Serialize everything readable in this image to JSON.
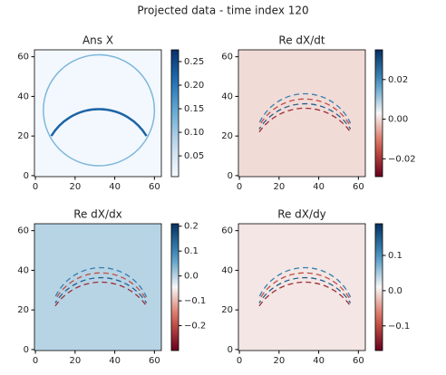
{
  "title": "Projected data - time index 120",
  "chart_data": [
    {
      "type": "heatmap",
      "title": "Ans X",
      "cmap": "Blues",
      "xlim": [
        -0.5,
        63.5
      ],
      "ylim": [
        63.5,
        -0.5
      ],
      "xticks": [
        0,
        20,
        40,
        60
      ],
      "yticks": [
        0,
        20,
        40,
        60
      ],
      "clim": [
        0.006,
        0.275
      ],
      "cticks": [
        0.05,
        {
          "value": 0.1,
          "label": "0.10"
        },
        0.15,
        {
          "value": 0.2,
          "label": "0.20"
        },
        0.25
      ]
    },
    {
      "type": "heatmap",
      "title": "Re dX/dt",
      "cmap": "RdBu",
      "xlim": [
        -0.5,
        63.5
      ],
      "ylim": [
        63.5,
        -0.5
      ],
      "xticks": [
        0,
        20,
        40,
        60
      ],
      "yticks": [
        0,
        20,
        40,
        60
      ],
      "clim": [
        -0.029,
        0.035
      ],
      "cticks": [
        {
          "value": -0.02,
          "label": "−0.02"
        },
        {
          "value": 0,
          "label": "0.00"
        },
        0.02
      ]
    },
    {
      "type": "heatmap",
      "title": "Re dX/dx",
      "cmap": "RdBu",
      "xlim": [
        -0.5,
        63.5
      ],
      "ylim": [
        63.5,
        -0.5
      ],
      "xticks": [
        0,
        20,
        40,
        60
      ],
      "yticks": [
        0,
        20,
        40,
        60
      ],
      "clim": [
        -0.3,
        0.21
      ],
      "cticks": [
        {
          "value": -0.2,
          "label": "−0.2"
        },
        {
          "value": -0.1,
          "label": "−0.1"
        },
        {
          "value": 0,
          "label": "0.0"
        },
        0.1,
        0.2
      ]
    },
    {
      "type": "heatmap",
      "title": "Re dX/dy",
      "cmap": "RdBu",
      "xlim": [
        -0.5,
        63.5
      ],
      "ylim": [
        63.5,
        -0.5
      ],
      "xticks": [
        0,
        20,
        40,
        60
      ],
      "yticks": [
        0,
        20,
        40,
        60
      ],
      "clim": [
        -0.17,
        0.19
      ],
      "cticks": [
        {
          "value": -0.1,
          "label": "−0.1"
        },
        {
          "value": 0,
          "label": "0.0"
        },
        0.1
      ]
    }
  ]
}
